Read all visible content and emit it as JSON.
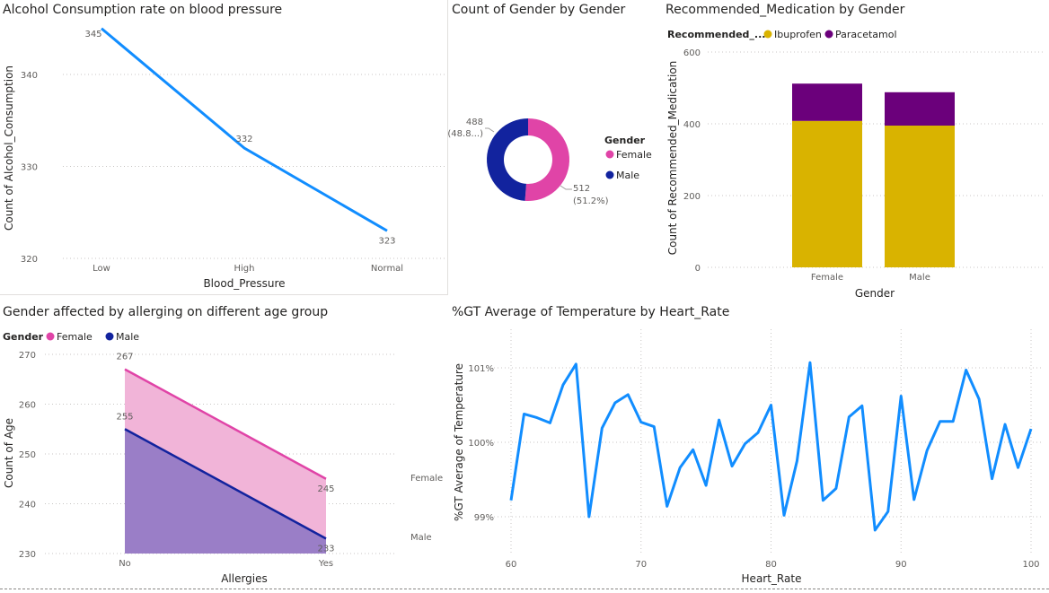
{
  "colors": {
    "blue_line": "#118DFF",
    "female": "#E044A7",
    "male": "#12239E",
    "ibuprofen": "#D9B300",
    "paracetamol": "#6B007B",
    "area_female": "#F1B4D8",
    "area_overlap": "#9A7EC7"
  },
  "chart_data": [
    {
      "id": "alcohol",
      "type": "line",
      "title": "Alcohol Consumption rate on blood pressure",
      "xlabel": "Blood_Pressure",
      "ylabel": "Count of Alcohol_Consumption",
      "categories": [
        "Low",
        "High",
        "Normal"
      ],
      "values": [
        345,
        332,
        323
      ],
      "data_labels": [
        "345",
        "332",
        "323"
      ],
      "yticks": [
        320,
        330,
        340
      ],
      "ytick_labels": [
        "320",
        "330",
        "340"
      ],
      "ylim": [
        320,
        345
      ],
      "grid": true
    },
    {
      "id": "gender_donut",
      "type": "pie",
      "title": "Count of Gender by Gender",
      "legend_title": "Gender",
      "categories": [
        "Female",
        "Male"
      ],
      "values": [
        512,
        488
      ],
      "slice_labels": [
        [
          "512",
          "(51.2%)"
        ],
        [
          "488",
          "(48.8...)"
        ]
      ]
    },
    {
      "id": "medication",
      "type": "bar",
      "title": "Recommended_Medication by Gender",
      "legend_title": "Recommended_...",
      "xlabel": "Gender",
      "ylabel": "Count of Recommended_Medication",
      "categories": [
        "Female",
        "Male"
      ],
      "series": [
        {
          "name": "Ibuprofen",
          "values": [
            408,
            395
          ]
        },
        {
          "name": "Paracetamol",
          "values": [
            104,
            93
          ]
        }
      ],
      "yticks": [
        0,
        200,
        400,
        600
      ],
      "ytick_labels": [
        "0",
        "200",
        "400",
        "600"
      ],
      "ylim": [
        0,
        600
      ],
      "grid": true
    },
    {
      "id": "allergies",
      "type": "area",
      "title": "Gender affected by allerging on different age group",
      "legend_title": "Gender",
      "xlabel": "Allergies",
      "ylabel": "Count of Age",
      "categories": [
        "No",
        "Yes"
      ],
      "series": [
        {
          "name": "Female",
          "values": [
            267,
            245
          ],
          "labels": [
            "267",
            "245"
          ],
          "end_label": "Female"
        },
        {
          "name": "Male",
          "values": [
            255,
            233
          ],
          "labels": [
            "255",
            "233"
          ],
          "end_label": "Male"
        }
      ],
      "yticks": [
        230,
        240,
        250,
        260,
        270
      ],
      "ytick_labels": [
        "230",
        "240",
        "250",
        "260",
        "270"
      ],
      "ylim": [
        230,
        270
      ],
      "grid": true
    },
    {
      "id": "temperature",
      "type": "line",
      "title": "%GT Average of Temperature by Heart_Rate",
      "xlabel": "Heart_Rate",
      "ylabel": "%GT Average of Temperature",
      "x": [
        60,
        61,
        62,
        63,
        64,
        65,
        66,
        67,
        68,
        69,
        70,
        71,
        72,
        73,
        74,
        75,
        76,
        77,
        78,
        79,
        80,
        81,
        82,
        83,
        84,
        85,
        86,
        87,
        88,
        89,
        90,
        91,
        92,
        93,
        94,
        95,
        96,
        97,
        98,
        99,
        100
      ],
      "values": [
        99.22,
        100.38,
        100.33,
        100.26,
        100.77,
        101.05,
        99.0,
        100.19,
        100.53,
        100.64,
        100.27,
        100.21,
        99.14,
        99.66,
        99.9,
        99.42,
        100.3,
        99.68,
        99.98,
        100.13,
        100.5,
        99.02,
        99.75,
        101.07,
        99.22,
        99.38,
        100.34,
        100.49,
        98.82,
        99.07,
        100.62,
        99.23,
        99.89,
        100.28,
        100.28,
        100.97,
        100.58,
        99.51,
        100.24,
        99.66,
        100.18
      ],
      "xticks": [
        60,
        70,
        80,
        90,
        100
      ],
      "xtick_labels": [
        "60",
        "70",
        "80",
        "90",
        "100"
      ],
      "yticks": [
        99,
        100,
        101
      ],
      "ytick_labels": [
        "99%",
        "100%",
        "101%"
      ],
      "ylim": [
        98.6,
        101.4
      ],
      "xlim": [
        60,
        100
      ],
      "grid": true
    }
  ]
}
